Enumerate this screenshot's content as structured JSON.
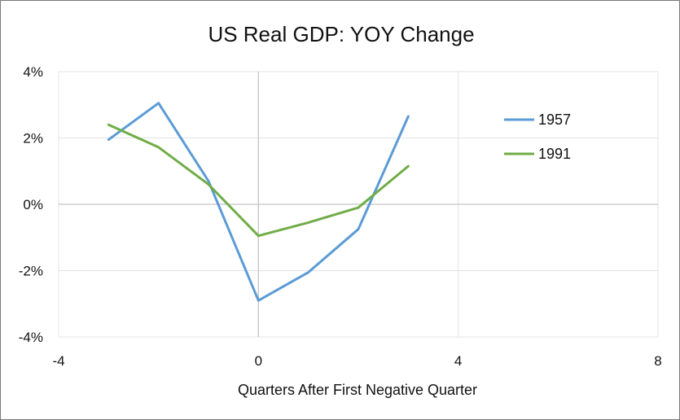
{
  "chart_data": {
    "type": "scatter",
    "title": "US Real GDP: YOY Change",
    "xlabel": "Quarters After First Negative Quarter",
    "ylabel": "",
    "xlim": [
      -4,
      8
    ],
    "ylim": [
      -4,
      4
    ],
    "x_ticks": [
      -4,
      0,
      4,
      8
    ],
    "y_ticks": [
      4,
      2,
      0,
      -2,
      -4
    ],
    "x_tick_labels": [
      "-4",
      "0",
      "4",
      "8"
    ],
    "y_tick_labels": [
      "4%",
      "2%",
      "0%",
      "-2%",
      "-4%"
    ],
    "grid": true,
    "legend_position": "right",
    "series": [
      {
        "name": "1957",
        "color": "#5B9BD5",
        "x": [
          -3,
          -2,
          -1,
          0,
          1,
          2,
          3
        ],
        "y": [
          1.95,
          3.05,
          0.7,
          -2.9,
          -2.05,
          -0.75,
          2.65
        ]
      },
      {
        "name": "1991",
        "color": "#70AD47",
        "x": [
          -3,
          -2,
          -1,
          0,
          1,
          2,
          3
        ],
        "y": [
          2.4,
          1.72,
          0.6,
          -0.95,
          -0.55,
          -0.1,
          1.15
        ]
      }
    ]
  }
}
